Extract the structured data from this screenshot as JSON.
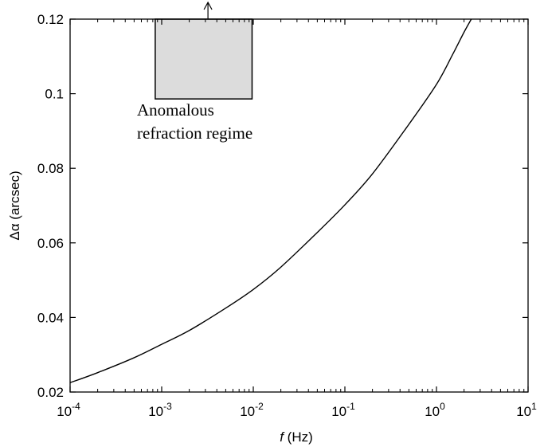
{
  "chart_data": {
    "type": "line",
    "xscale": "log",
    "xlim": [
      0.0001,
      10
    ],
    "ylim": [
      0.02,
      0.12
    ],
    "xlabel": "f (Hz)",
    "xlabel_var": "f",
    "xlabel_unit": " (Hz)",
    "ylabel": "Δα (arcsec)",
    "x_ticks": [
      {
        "value": 0.0001,
        "base": "10",
        "exp": "-4"
      },
      {
        "value": 0.001,
        "base": "10",
        "exp": "-3"
      },
      {
        "value": 0.01,
        "base": "10",
        "exp": "-2"
      },
      {
        "value": 0.1,
        "base": "10",
        "exp": "-1"
      },
      {
        "value": 1,
        "base": "10",
        "exp": "0"
      },
      {
        "value": 10,
        "base": "10",
        "exp": "1"
      }
    ],
    "y_ticks": [
      {
        "value": 0.02,
        "label": "0.02"
      },
      {
        "value": 0.04,
        "label": "0.04"
      },
      {
        "value": 0.06,
        "label": "0.06"
      },
      {
        "value": 0.08,
        "label": "0.08"
      },
      {
        "value": 0.1,
        "label": "0.1"
      },
      {
        "value": 0.12,
        "label": "0.12"
      }
    ],
    "series": [
      {
        "color": "#000000",
        "points": [
          [
            0.0001,
            0.0225
          ],
          [
            0.0002,
            0.0252
          ],
          [
            0.0005,
            0.0292
          ],
          [
            0.001,
            0.0328
          ],
          [
            0.002,
            0.0365
          ],
          [
            0.005,
            0.0425
          ],
          [
            0.01,
            0.0475
          ],
          [
            0.02,
            0.0535
          ],
          [
            0.05,
            0.0628
          ],
          [
            0.1,
            0.0702
          ],
          [
            0.2,
            0.0785
          ],
          [
            0.5,
            0.0918
          ],
          [
            1,
            0.1025
          ],
          [
            1.5,
            0.1105
          ],
          [
            2.0,
            0.1165
          ],
          [
            2.4,
            0.12
          ]
        ]
      }
    ],
    "shaded_region": {
      "x": [
        0.00085,
        0.0097
      ],
      "y": [
        0.0986,
        0.12
      ],
      "color": "#dcdcdc",
      "label_lines": [
        "Anomalous",
        "refraction regime"
      ]
    },
    "arrow": {
      "x": 0.0032,
      "y_from": 0.12,
      "direction": "up"
    }
  }
}
